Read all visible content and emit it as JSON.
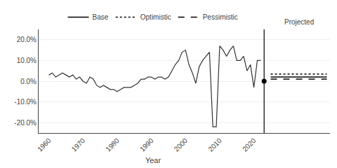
{
  "chart_data": {
    "type": "line",
    "xlabel": "Year",
    "x": [
      1960,
      1961,
      1962,
      1963,
      1964,
      1965,
      1966,
      1967,
      1968,
      1969,
      1970,
      1971,
      1972,
      1973,
      1974,
      1975,
      1976,
      1977,
      1978,
      1979,
      1980,
      1981,
      1982,
      1983,
      1984,
      1985,
      1986,
      1987,
      1988,
      1989,
      1990,
      1991,
      1992,
      1993,
      1994,
      1995,
      1996,
      1997,
      1998,
      1999,
      2000,
      2001,
      2002,
      2003,
      2004,
      2005,
      2006,
      2007,
      2008,
      2009,
      2010,
      2011,
      2012,
      2013,
      2014,
      2015,
      2016,
      2017,
      2018,
      2019,
      2020,
      2021,
      2022
    ],
    "series": [
      {
        "color": "#333333",
        "values": [
          0.03,
          0.04,
          0.02,
          0.03,
          0.04,
          0.03,
          0.02,
          0.03,
          0.01,
          0.02,
          0.0,
          -0.01,
          0.02,
          0.01,
          -0.02,
          -0.03,
          -0.02,
          -0.03,
          -0.04,
          -0.04,
          -0.05,
          -0.04,
          -0.03,
          -0.03,
          -0.03,
          -0.02,
          -0.01,
          0.01,
          0.01,
          0.02,
          0.02,
          0.01,
          0.02,
          0.02,
          0.01,
          0.02,
          0.05,
          0.08,
          0.1,
          0.14,
          0.15,
          0.08,
          0.04,
          -0.01,
          0.07,
          0.1,
          0.12,
          0.14,
          -0.22,
          -0.22,
          0.17,
          0.15,
          0.12,
          0.15,
          0.17,
          0.1,
          0.1,
          0.12,
          0.05,
          0.08,
          -0.03,
          0.1,
          0.1
        ]
      }
    ],
    "xlim": [
      1957,
      2024
    ],
    "xticks": [
      1960,
      1970,
      1980,
      1990,
      2000,
      2010,
      2020
    ],
    "ylim": [
      -0.25,
      0.25
    ],
    "yticks": [
      {
        "value": -0.2,
        "label": "-20.0%"
      },
      {
        "value": -0.1,
        "label": "-10.0%"
      },
      {
        "value": 0.0,
        "label": "0.0%"
      },
      {
        "value": 0.1,
        "label": "10.0%"
      },
      {
        "value": 0.2,
        "label": "20.0%"
      }
    ],
    "grid": true,
    "legend": "top",
    "divider": {
      "x": 2023,
      "color": "black",
      "dot": {
        "x": 2023,
        "y": 0.0,
        "color": "black"
      }
    },
    "projected": {
      "label": "Projected",
      "series": [
        {
          "name": "Base",
          "color": "black",
          "line_style": "solid",
          "values": [
            0.02
          ]
        },
        {
          "name": "Optimistic",
          "color": "black",
          "line_style": "dotted",
          "values": [
            0.035
          ]
        },
        {
          "name": "Pessimistic",
          "color": "black",
          "line_style": "dashed",
          "values": [
            0.01
          ]
        }
      ]
    }
  }
}
